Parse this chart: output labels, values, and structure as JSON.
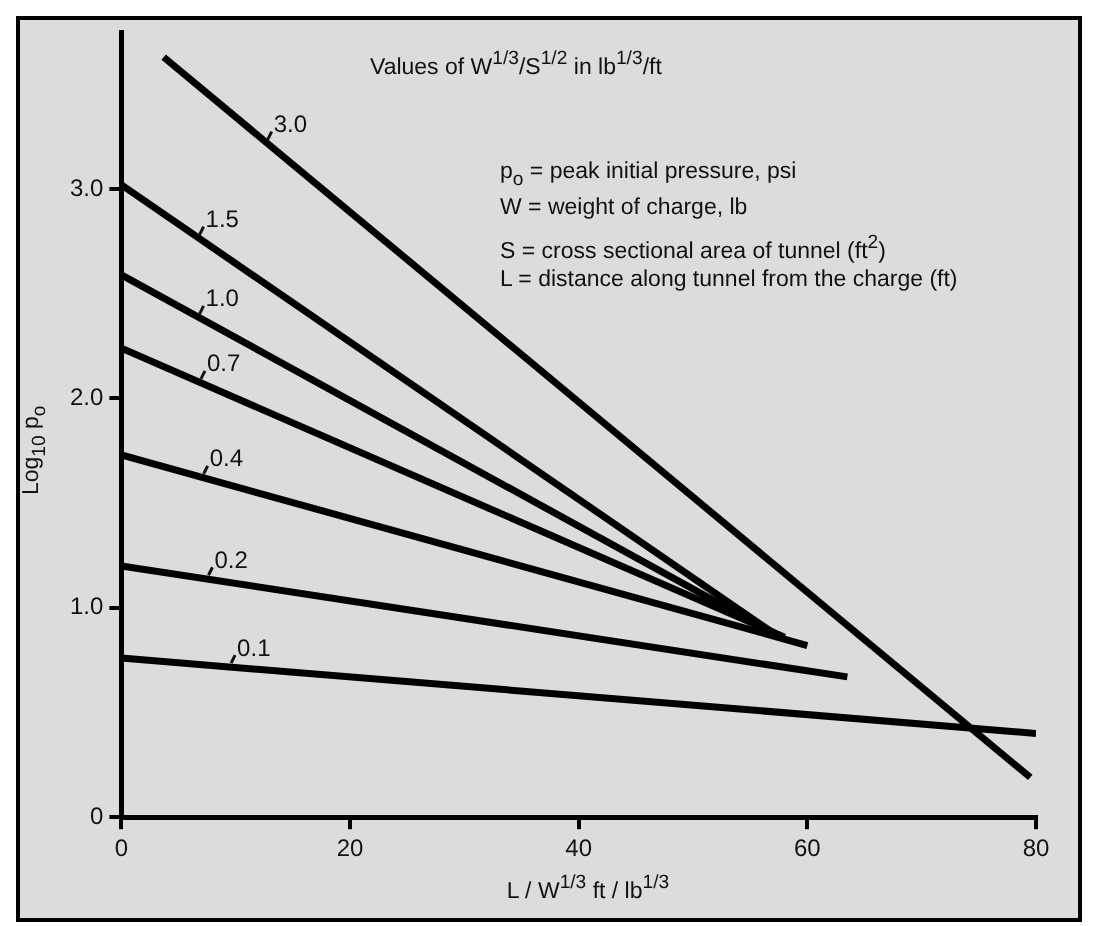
{
  "chart_data": {
    "type": "line",
    "xlabel": "L / W$^{1/3}$  ft / lb$^{1/3}$",
    "ylabel": "Log$_{10}$ p$_{o}$",
    "annotations": [
      "Values of W$^{1/3}$/S$^{1/2}$ in lb$^{1/3}$/ft",
      "p$_{o}$ = peak initial pressure, psi",
      "W = weight of charge, lb",
      "S = cross sectional area of tunnel (ft$^{2}$)",
      "L = distance along tunnel from the charge (ft)"
    ],
    "series": [
      {
        "name": "3.0",
        "color": "#000000",
        "x": [
          3.7,
          79.5
        ],
        "values": [
          3.63,
          0.19
        ]
      },
      {
        "name": "1.5",
        "color": "#000000",
        "x": [
          0,
          57
        ],
        "values": [
          3.02,
          0.88
        ]
      },
      {
        "name": "1.0",
        "color": "#000000",
        "x": [
          0,
          57
        ],
        "values": [
          2.59,
          0.88
        ]
      },
      {
        "name": "0.7",
        "color": "#000000",
        "x": [
          0,
          58
        ],
        "values": [
          2.24,
          0.86
        ]
      },
      {
        "name": "0.4",
        "color": "#000000",
        "x": [
          0,
          60
        ],
        "values": [
          1.73,
          0.82
        ]
      },
      {
        "name": "0.2",
        "color": "#000000",
        "x": [
          0,
          63.5
        ],
        "values": [
          1.2,
          0.67
        ]
      },
      {
        "name": "0.1",
        "color": "#000000",
        "x": [
          0,
          80
        ],
        "values": [
          0.76,
          0.4
        ]
      }
    ],
    "xlim": [
      0,
      80
    ],
    "xticks": [
      0,
      20,
      40,
      60,
      80
    ],
    "ylim": [
      0,
      3.75
    ],
    "yticks": [
      0,
      {
        "value": 1,
        "label": "1.0"
      },
      {
        "value": 2,
        "label": "2.0"
      },
      {
        "value": 3,
        "label": "3.0"
      }
    ],
    "grid": false,
    "legend": false,
    "marker": "none",
    "line_style": "solid"
  }
}
